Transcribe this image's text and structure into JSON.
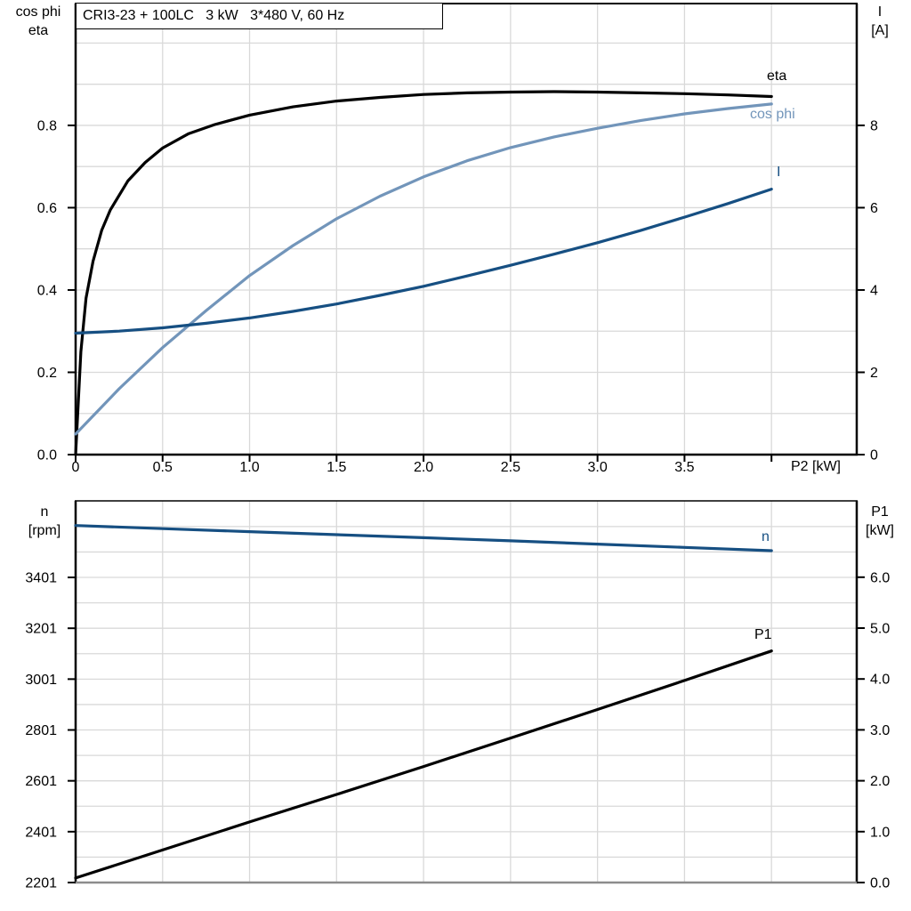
{
  "title_box": {
    "text": "CRI3-23 + 100LC   3 kW   3*480 V, 60 Hz"
  },
  "axis_headers": {
    "top_left_line1": "cos phi",
    "top_left_line2": "eta",
    "top_right_line1": "I",
    "top_right_line2": "[A]",
    "bottom_left_line1": "n",
    "bottom_left_line2": "[rpm]",
    "bottom_right_line1": "P1",
    "bottom_right_line2": "[kW]"
  },
  "colors": {
    "black_curve": "#000000",
    "light_blue_curve": "#7295ba",
    "dark_blue_curve": "#164f82",
    "gridline": "#d9d9d9",
    "axis": "#000000",
    "bottom_chart_floor": "#8c8c8c"
  },
  "chart_data": [
    {
      "id": "top-performance-chart",
      "type": "line",
      "title": "CRI3-23 + 100LC   3 kW   3*480 V, 60 Hz",
      "x_axis": {
        "label": "P2 [kW]",
        "min": 0,
        "max": 4.49,
        "ticks": [
          0,
          0.5,
          1.0,
          1.5,
          2.0,
          2.5,
          3.0,
          3.5,
          4.0
        ],
        "tick_labels": [
          "0",
          "0.5",
          "1.0",
          "1.5",
          "2.0",
          "2.5",
          "3.0",
          "3.5",
          ""
        ],
        "grid": {
          "start": 0.5,
          "end": 4.0,
          "step": 0.5
        }
      },
      "y_left": {
        "label": "cos phi / eta",
        "min": 0,
        "max": 1.096,
        "ticks": [
          0,
          0.2,
          0.4,
          0.6,
          0.8
        ],
        "tick_labels": [
          "0.0",
          "0.2",
          "0.4",
          "0.6",
          "0.8"
        ],
        "grid_step": 0.1
      },
      "y_right": {
        "label": "I [A]",
        "min": 0,
        "max": 10.96,
        "ticks": [
          0,
          2,
          4,
          6,
          8
        ],
        "tick_labels": [
          "0",
          "2",
          "4",
          "6",
          "8"
        ]
      },
      "legend_position": "end-of-curve",
      "series": [
        {
          "name": "eta",
          "axis": "left",
          "color": "#000000",
          "x": [
            0,
            0.03,
            0.06,
            0.1,
            0.15,
            0.2,
            0.3,
            0.4,
            0.5,
            0.65,
            0.8,
            1.0,
            1.25,
            1.5,
            1.75,
            2.0,
            2.25,
            2.5,
            2.75,
            3.0,
            3.25,
            3.5,
            3.75,
            4.0
          ],
          "y": [
            0,
            0.25,
            0.38,
            0.47,
            0.545,
            0.595,
            0.665,
            0.71,
            0.745,
            0.78,
            0.802,
            0.825,
            0.845,
            0.859,
            0.868,
            0.875,
            0.879,
            0.881,
            0.882,
            0.881,
            0.879,
            0.877,
            0.874,
            0.87
          ]
        },
        {
          "name": "cos phi",
          "axis": "left",
          "color": "#7295ba",
          "x": [
            0,
            0.25,
            0.5,
            0.75,
            1.0,
            1.25,
            1.5,
            1.75,
            2.0,
            2.25,
            2.5,
            2.75,
            3.0,
            3.25,
            3.5,
            3.75,
            4.0
          ],
          "y": [
            0.05,
            0.16,
            0.26,
            0.35,
            0.435,
            0.508,
            0.573,
            0.628,
            0.675,
            0.714,
            0.746,
            0.772,
            0.793,
            0.812,
            0.828,
            0.841,
            0.852
          ]
        },
        {
          "name": "I",
          "axis": "right",
          "color": "#164f82",
          "x": [
            0,
            0.25,
            0.5,
            0.75,
            1.0,
            1.25,
            1.5,
            1.75,
            2.0,
            2.25,
            2.5,
            2.75,
            3.0,
            3.25,
            3.5,
            3.75,
            4.0
          ],
          "y": [
            2.95,
            3.0,
            3.08,
            3.19,
            3.32,
            3.48,
            3.66,
            3.87,
            4.09,
            4.34,
            4.6,
            4.87,
            5.15,
            5.45,
            5.77,
            6.1,
            6.45
          ]
        }
      ]
    },
    {
      "id": "bottom-speed-power-chart",
      "type": "line",
      "x_axis": {
        "label": "",
        "min": 0,
        "max": 4.49,
        "ticks": [],
        "tick_labels": [],
        "grid": {
          "start": 0.5,
          "end": 4.0,
          "step": 0.5
        }
      },
      "y_left": {
        "label": "n [rpm]",
        "min": 2201,
        "max": 3702,
        "ticks": [
          2201,
          2401,
          2601,
          2801,
          3001,
          3201,
          3401
        ],
        "tick_labels": [
          "2201",
          "2401",
          "2601",
          "2801",
          "3001",
          "3201",
          "3401"
        ],
        "grid_step": 100
      },
      "y_right": {
        "label": "P1 [kW]",
        "min": 0,
        "max": 7.5,
        "ticks": [
          0,
          1,
          2,
          3,
          4,
          5,
          6
        ],
        "tick_labels": [
          "0.0",
          "1.0",
          "2.0",
          "3.0",
          "4.0",
          "5.0",
          "6.0"
        ]
      },
      "legend_position": "end-of-curve",
      "series": [
        {
          "name": "n",
          "axis": "left",
          "color": "#164f82",
          "x": [
            0,
            0.5,
            1.0,
            1.5,
            2.0,
            2.5,
            3.0,
            3.5,
            4.0
          ],
          "y": [
            3605,
            3593,
            3581,
            3569,
            3557,
            3545,
            3532,
            3519,
            3506
          ]
        },
        {
          "name": "P1",
          "axis": "right",
          "color": "#000000",
          "x": [
            0,
            0.5,
            1.0,
            1.5,
            2.0,
            2.5,
            3.0,
            3.5,
            4.0
          ],
          "y": [
            0.09,
            0.64,
            1.19,
            1.73,
            2.28,
            2.84,
            3.4,
            3.97,
            4.55
          ]
        }
      ]
    }
  ]
}
